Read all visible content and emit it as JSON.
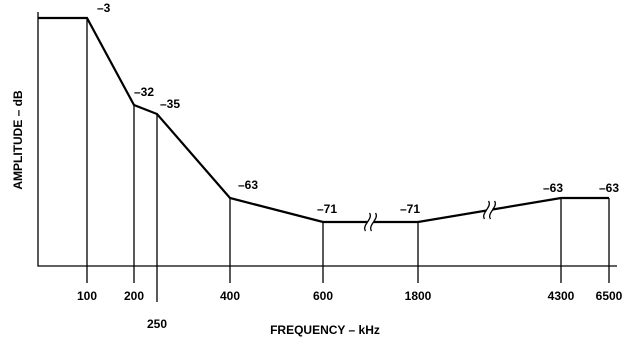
{
  "chart_data": {
    "type": "line",
    "title": "",
    "xlabel": "FREQUENCY – kHz",
    "ylabel": "AMPLITUDE – dB",
    "x_tick_labels": [
      "100",
      "200",
      "250",
      "400",
      "600",
      "1800",
      "4300",
      "6500"
    ],
    "x_axis_breaks": [
      "600–1800",
      "1800–4300"
    ],
    "points": [
      {
        "x": 0,
        "y": -3
      },
      {
        "x": 100,
        "y": -3,
        "label": "–3"
      },
      {
        "x": 200,
        "y": -32,
        "label": "–32"
      },
      {
        "x": 250,
        "y": -35,
        "label": "–35"
      },
      {
        "x": 400,
        "y": -63,
        "label": "–63"
      },
      {
        "x": 600,
        "y": -71,
        "label": "–71"
      },
      {
        "x": 1800,
        "y": -71,
        "label": "–71"
      },
      {
        "x": 4300,
        "y": -63,
        "label": "–63"
      },
      {
        "x": 6500,
        "y": -63,
        "label": "–63"
      }
    ],
    "grid": false,
    "legend": "none"
  }
}
